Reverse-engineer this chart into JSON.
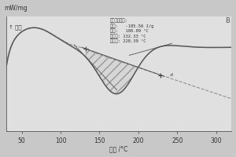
{
  "xlabel": "温度 /°C",
  "ylabel": "mW/mg",
  "ylabel2": "↑ 放热",
  "xmin": 30,
  "xmax": 320,
  "ymin": -3.5,
  "ymax": 1.6,
  "bg_color": "#c8c8c8",
  "plot_bg": "#e0e0e0",
  "annotation_text": "峰的综合分析:\n面积:   -185.56 J/g\n峰温:   180.89 °C\n起始点: 132.33 °C\n终止点: 228.39 °C",
  "baseline_start_x": 132.33,
  "baseline_end_x": 228.39,
  "peak_x": 180.89,
  "corner_label": "B",
  "line_color": "#555555",
  "dashed_line_color": "#888888",
  "hatch_color": "#999999"
}
